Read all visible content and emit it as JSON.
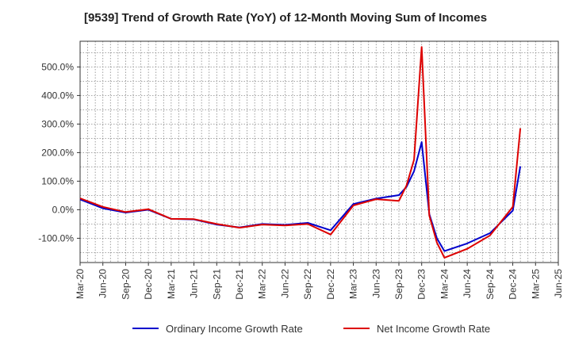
{
  "chart_data": {
    "type": "line",
    "title": "[9539]  Trend of Growth Rate (YoY) of 12-Month Moving Sum of Incomes",
    "xlabel": "",
    "ylabel": "",
    "ylim": [
      -185,
      590
    ],
    "grid": true,
    "legend_position": "bottom",
    "x_ticks": [
      "Mar-20",
      "Jun-20",
      "Sep-20",
      "Dec-20",
      "Mar-21",
      "Jun-21",
      "Sep-21",
      "Dec-21",
      "Mar-22",
      "Jun-22",
      "Sep-22",
      "Dec-22",
      "Mar-23",
      "Jun-23",
      "Sep-23",
      "Dec-23",
      "Mar-24",
      "Jun-24",
      "Sep-24",
      "Dec-24",
      "Mar-25",
      "Jun-25"
    ],
    "y_ticks": [
      {
        "value": -100,
        "label": "-100.0%"
      },
      {
        "value": 0,
        "label": "0.0%"
      },
      {
        "value": 100,
        "label": "100.0%"
      },
      {
        "value": 200,
        "label": "200.0%"
      },
      {
        "value": 300,
        "label": "300.0%"
      },
      {
        "value": 400,
        "label": "400.0%"
      },
      {
        "value": 500,
        "label": "500.0%"
      }
    ],
    "series": [
      {
        "name": "Ordinary Income Growth Rate",
        "color": "#0000cc",
        "points": [
          {
            "x": "Mar-20",
            "y": 36
          },
          {
            "x": "Jun-20",
            "y": 5
          },
          {
            "x": "Sep-20",
            "y": -10
          },
          {
            "x": "Dec-20",
            "y": 0
          },
          {
            "x": "Mar-21",
            "y": -32
          },
          {
            "x": "Jun-21",
            "y": -34
          },
          {
            "x": "Sep-21",
            "y": -52
          },
          {
            "x": "Dec-21",
            "y": -62
          },
          {
            "x": "Mar-22",
            "y": -50
          },
          {
            "x": "Jun-22",
            "y": -53
          },
          {
            "x": "Sep-22",
            "y": -46
          },
          {
            "x": "Dec-22",
            "y": -72
          },
          {
            "x": "Mar-23",
            "y": 20
          },
          {
            "x": "Jun-23",
            "y": 39
          },
          {
            "x": "Sep-23",
            "y": 51
          },
          {
            "x": "Oct-23",
            "y": 80
          },
          {
            "x": "Nov-23",
            "y": 135
          },
          {
            "x": "Dec-23",
            "y": 237
          },
          {
            "x": "Jan-24",
            "y": -15
          },
          {
            "x": "Feb-24",
            "y": -100
          },
          {
            "x": "Mar-24",
            "y": -145
          },
          {
            "x": "Jun-24",
            "y": -118
          },
          {
            "x": "Sep-24",
            "y": -82
          },
          {
            "x": "Dec-24",
            "y": -3
          },
          {
            "x": "Jan-25",
            "y": 152
          }
        ]
      },
      {
        "name": "Net Income Growth Rate",
        "color": "#dd0000",
        "points": [
          {
            "x": "Mar-20",
            "y": 40
          },
          {
            "x": "Jun-20",
            "y": 10
          },
          {
            "x": "Sep-20",
            "y": -8
          },
          {
            "x": "Dec-20",
            "y": 2
          },
          {
            "x": "Mar-21",
            "y": -32
          },
          {
            "x": "Jun-21",
            "y": -33
          },
          {
            "x": "Sep-21",
            "y": -50
          },
          {
            "x": "Dec-21",
            "y": -63
          },
          {
            "x": "Mar-22",
            "y": -52
          },
          {
            "x": "Jun-22",
            "y": -55
          },
          {
            "x": "Sep-22",
            "y": -50
          },
          {
            "x": "Dec-22",
            "y": -87
          },
          {
            "x": "Mar-23",
            "y": 15
          },
          {
            "x": "Jun-23",
            "y": 37
          },
          {
            "x": "Sep-23",
            "y": 31
          },
          {
            "x": "Oct-23",
            "y": 85
          },
          {
            "x": "Nov-23",
            "y": 175
          },
          {
            "x": "Dec-23",
            "y": 570
          },
          {
            "x": "Jan-24",
            "y": -20
          },
          {
            "x": "Feb-24",
            "y": -115
          },
          {
            "x": "Mar-24",
            "y": -168
          },
          {
            "x": "Jun-24",
            "y": -137
          },
          {
            "x": "Sep-24",
            "y": -90
          },
          {
            "x": "Dec-24",
            "y": 10
          },
          {
            "x": "Jan-25",
            "y": 285
          }
        ]
      }
    ]
  }
}
